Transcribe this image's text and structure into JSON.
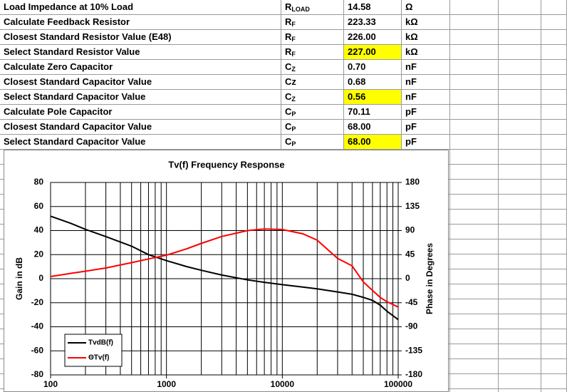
{
  "table": {
    "rows": [
      {
        "label": "Load Impedance at 10% Load",
        "symbol": {
          "base": "R",
          "sub": "LOAD"
        },
        "value": "14.58",
        "unit": "Ω",
        "highlight": false
      },
      {
        "label": "Calculate Feedback Resistor",
        "symbol": {
          "base": "R",
          "sub": "F"
        },
        "value": "223.33",
        "unit": "kΩ",
        "highlight": false
      },
      {
        "label": "Closest Standard Resistor Value (E48)",
        "symbol": {
          "base": "R",
          "sub": "F"
        },
        "value": "226.00",
        "unit": "kΩ",
        "highlight": false
      },
      {
        "label": "Select Standard Resistor Value",
        "symbol": {
          "base": "R",
          "sub": "F"
        },
        "value": "227.00",
        "unit": "kΩ",
        "highlight": true
      },
      {
        "label": "Calculate Zero Capacitor",
        "symbol": {
          "base": "C",
          "sub": "Z"
        },
        "value": "0.70",
        "unit": "nF",
        "highlight": false
      },
      {
        "label": "Closest Standard Capacitor Value",
        "symbol": "Cz",
        "value": "0.68",
        "unit": "nF",
        "highlight": false
      },
      {
        "label": "Select Standard Capacitor Value",
        "symbol": {
          "base": "C",
          "sub": "Z"
        },
        "value": "0.56",
        "unit": "nF",
        "highlight": true
      },
      {
        "label": "Calculate Pole Capacitor",
        "symbol": {
          "base": "C",
          "sub": "P"
        },
        "value": "70.11",
        "unit": "pF",
        "highlight": false
      },
      {
        "label": "Closest Standard Capacitor Value",
        "symbol": {
          "base": "C",
          "sub": "P"
        },
        "value": "68.00",
        "unit": "pF",
        "highlight": false
      },
      {
        "label": "Select Standard Capacitor Value",
        "symbol": {
          "base": "C",
          "sub": "P"
        },
        "value": "68.00",
        "unit": "pF",
        "highlight": true
      }
    ],
    "highlight_color": "#ffff00"
  },
  "chart_data": {
    "type": "line",
    "title": "Tv(f) Frequency Response",
    "y_label": "Gain in dB",
    "y2_label": "Phase in Degrees",
    "x": [
      100,
      150,
      200,
      300,
      500,
      700,
      1000,
      1500,
      2000,
      3000,
      5000,
      7000,
      10000,
      15000,
      20000,
      30000,
      40000,
      50000,
      60000,
      70000,
      80000,
      100000
    ],
    "series": [
      {
        "name": "TvdB(f)",
        "color": "#000000",
        "values": [
          52,
          46,
          41,
          35,
          27,
          20,
          15,
          10,
          7,
          3,
          -1,
          -3,
          -5,
          -7,
          -8.5,
          -11,
          -13,
          -15.5,
          -18,
          -22,
          -27,
          -34
        ]
      },
      {
        "name": "ΘTv(f)",
        "color": "#ff0000",
        "axis": "y2",
        "values": [
          4,
          10,
          14,
          20,
          30,
          37,
          44,
          56,
          66,
          79,
          90,
          93,
          92,
          84,
          72,
          38,
          24,
          -6,
          -22,
          -35,
          -43,
          -53
        ]
      }
    ],
    "xscale": "log",
    "xlim": [
      100,
      100000
    ],
    "xticks": [
      100,
      1000,
      10000,
      100000
    ],
    "xgrid": [
      100,
      200,
      300,
      400,
      500,
      600,
      700,
      800,
      900,
      1000,
      2000,
      3000,
      4000,
      5000,
      6000,
      7000,
      8000,
      9000,
      10000,
      20000,
      30000,
      40000,
      50000,
      60000,
      70000,
      80000,
      90000,
      100000
    ],
    "ylim": [
      -80,
      80
    ],
    "yticks": [
      -80,
      -60,
      -40,
      -20,
      0,
      20,
      40,
      60,
      80
    ],
    "y2lim": [
      -180,
      180
    ],
    "y2ticks": [
      -180,
      -135,
      -90,
      -45,
      0,
      45,
      90,
      135,
      180
    ],
    "grid": true,
    "legend": "lower left"
  }
}
